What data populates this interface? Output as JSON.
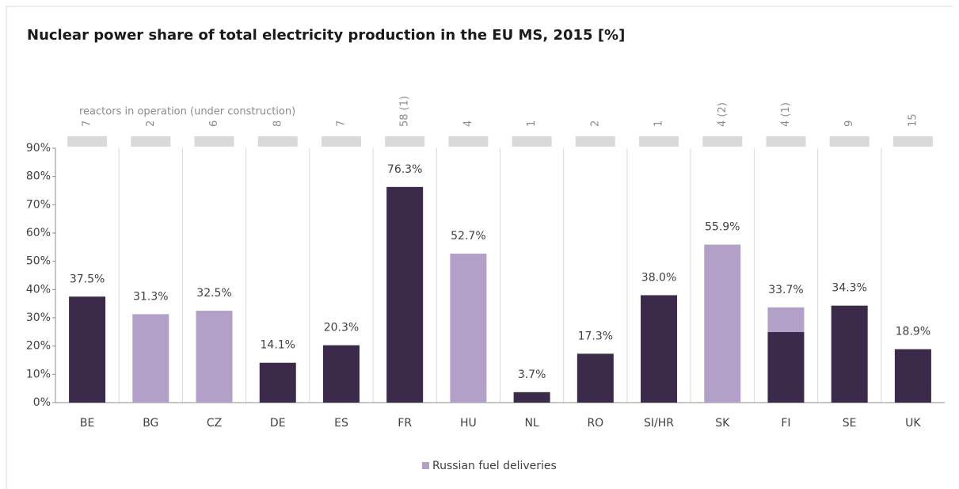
{
  "chart_data": {
    "type": "bar",
    "title": "Nuclear power share of total electricity production in the EU MS, 2015 [%]",
    "reactors_header": "reactors in operation  (under construction)",
    "reactors": [
      "7",
      "2",
      "6",
      "8",
      "7",
      "58 (1)",
      "4",
      "1",
      "2",
      "1",
      "4 (2)",
      "4 (1)",
      "9",
      "15"
    ],
    "categories": [
      "BE",
      "BG",
      "CZ",
      "DE",
      "ES",
      "FR",
      "HU",
      "NL",
      "RO",
      "SI/HR",
      "SK",
      "FI",
      "SE",
      "UK"
    ],
    "series": [
      {
        "color": "#3b2a4a",
        "values": [
          37.5,
          null,
          null,
          14.1,
          20.3,
          76.3,
          null,
          3.7,
          17.3,
          38.0,
          null,
          25,
          34.3,
          18.9
        ]
      },
      {
        "name": "Russian fuel deliveries",
        "color": "#b3a0c8",
        "values": [
          null,
          31.3,
          32.5,
          null,
          null,
          null,
          52.7,
          null,
          null,
          null,
          55.9,
          8.7,
          null,
          null
        ]
      }
    ],
    "totals": [
      37.5,
      31.3,
      32.5,
      14.1,
      20.3,
      76.3,
      52.7,
      3.7,
      17.3,
      38.0,
      55.9,
      33.7,
      34.3,
      18.9
    ],
    "total_labels": [
      "37.5%",
      "31.3%",
      "32.5%",
      "14.1%",
      "20.3%",
      "76.3%",
      "52.7%",
      "3.7%",
      "17.3%",
      "38.0%",
      "55.9%",
      "33.7%",
      "34.3%",
      "18.9%"
    ],
    "ylim": [
      0,
      90
    ],
    "yticks": [
      {
        "value": 0,
        "label": "0%"
      },
      {
        "value": 10,
        "label": "10%"
      },
      {
        "value": 20,
        "label": "20%"
      },
      {
        "value": 30,
        "label": "30%"
      },
      {
        "value": 40,
        "label": "40%"
      },
      {
        "value": 50,
        "label": "50%"
      },
      {
        "value": 60,
        "label": "60%"
      },
      {
        "value": 70,
        "label": "70%"
      },
      {
        "value": 80,
        "label": "80%"
      },
      {
        "value": 90,
        "label": "90%"
      }
    ]
  }
}
